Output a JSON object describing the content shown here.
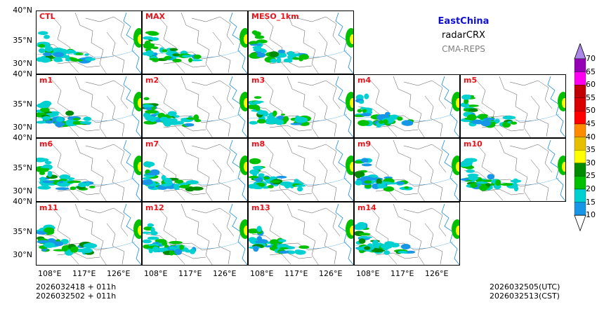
{
  "header": {
    "region": "EastChina",
    "product": "radarCRX",
    "system": "CMA-REPS",
    "region_color": "#1010d0",
    "system_color": "#808080"
  },
  "panels": [
    "CTL",
    "MAX",
    "MESO_1km",
    "m1",
    "m2",
    "m3",
    "m4",
    "m5",
    "m6",
    "m7",
    "m8",
    "m9",
    "m10",
    "m11",
    "m12",
    "m13",
    "m14"
  ],
  "axes": {
    "lat_labels": [
      "40°N",
      "35°N",
      "30°N"
    ],
    "lon_labels": [
      "108°E",
      "117°E",
      "126°E"
    ]
  },
  "colorbar": {
    "levels": [
      "10",
      "15",
      "20",
      "25",
      "30",
      "35",
      "40",
      "45",
      "50",
      "55",
      "60",
      "65",
      "70"
    ],
    "colors": [
      "#1796e8",
      "#00d0d0",
      "#00c000",
      "#008c00",
      "#ffff00",
      "#e6c000",
      "#ff8c00",
      "#ff0000",
      "#d80000",
      "#c00000",
      "#ff00f0",
      "#9600b4",
      "#aa88e8"
    ]
  },
  "footer": {
    "init_line1": "2026032418  +  011h",
    "init_line2": "2026032502  +  011h",
    "valid_utc": "2026032505(UTC)",
    "valid_cst": "2026032513(CST)"
  }
}
